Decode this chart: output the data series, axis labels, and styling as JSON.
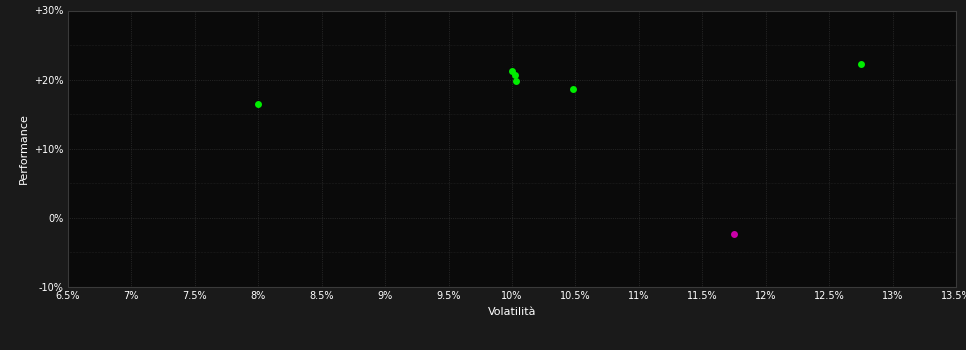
{
  "background_color": "#1a1a1a",
  "plot_bg_color": "#0a0a0a",
  "grid_color": "#3a3a3a",
  "text_color": "#ffffff",
  "xlabel": "Volatilità",
  "ylabel": "Performance",
  "xlim": [
    0.065,
    0.135
  ],
  "ylim": [
    -0.1,
    0.3
  ],
  "xticks": [
    0.065,
    0.07,
    0.075,
    0.08,
    0.085,
    0.09,
    0.095,
    0.1,
    0.105,
    0.11,
    0.115,
    0.12,
    0.125,
    0.13,
    0.135
  ],
  "yticks": [
    -0.1,
    0.0,
    0.1,
    0.2,
    0.3
  ],
  "ytick_labels": [
    "-10%",
    "0%",
    "+10%",
    "+20%",
    "+30%"
  ],
  "xtick_labels": [
    "6.5%",
    "7%",
    "7.5%",
    "8%",
    "8.5%",
    "9%",
    "9.5%",
    "10%",
    "10.5%",
    "11%",
    "11.5%",
    "12%",
    "12.5%",
    "13%",
    "13.5%"
  ],
  "green_points": [
    [
      0.08,
      0.165
    ],
    [
      0.1,
      0.213
    ],
    [
      0.1002,
      0.206
    ],
    [
      0.1003,
      0.198
    ],
    [
      0.1048,
      0.187
    ],
    [
      0.1275,
      0.222
    ]
  ],
  "magenta_points": [
    [
      0.1175,
      -0.023
    ]
  ],
  "green_color": "#00ee00",
  "magenta_color": "#cc00aa",
  "marker_size": 5
}
